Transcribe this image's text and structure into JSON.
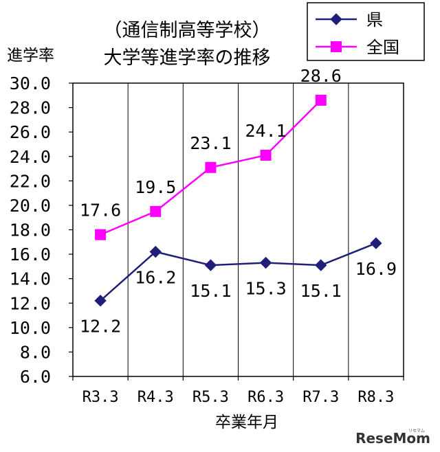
{
  "chart_data": {
    "type": "line",
    "title_lines": [
      "（通信制高等学校）",
      "大学等進学率の推移"
    ],
    "xlabel": "卒業年月",
    "ylabel": "進学率",
    "categories": [
      "R3.3",
      "R4.3",
      "R5.3",
      "R6.3",
      "R7.3",
      "R8.3"
    ],
    "y_ticks": [
      "6.0",
      "8.0",
      "10.0",
      "12.0",
      "14.0",
      "16.0",
      "18.0",
      "20.0",
      "22.0",
      "24.0",
      "26.0",
      "28.0",
      "30.0"
    ],
    "ylim": [
      6,
      30
    ],
    "grid": "vertical",
    "legend_position": "top-right",
    "series": [
      {
        "name": "県",
        "values": [
          12.2,
          16.2,
          15.1,
          15.3,
          15.1,
          16.9
        ],
        "labels": [
          "12.2",
          "16.2",
          "15.1",
          "15.3",
          "15.1",
          "16.9"
        ],
        "color": "#1f1f7a",
        "marker": "diamond"
      },
      {
        "name": "全国",
        "values": [
          17.6,
          19.5,
          23.1,
          24.1,
          28.6,
          null
        ],
        "labels": [
          "17.6",
          "19.5",
          "23.1",
          "24.1",
          "28.6",
          ""
        ],
        "color": "#ff00ff",
        "marker": "square"
      }
    ]
  },
  "watermark": {
    "text": "ReseMom",
    "small": "リセマム"
  }
}
